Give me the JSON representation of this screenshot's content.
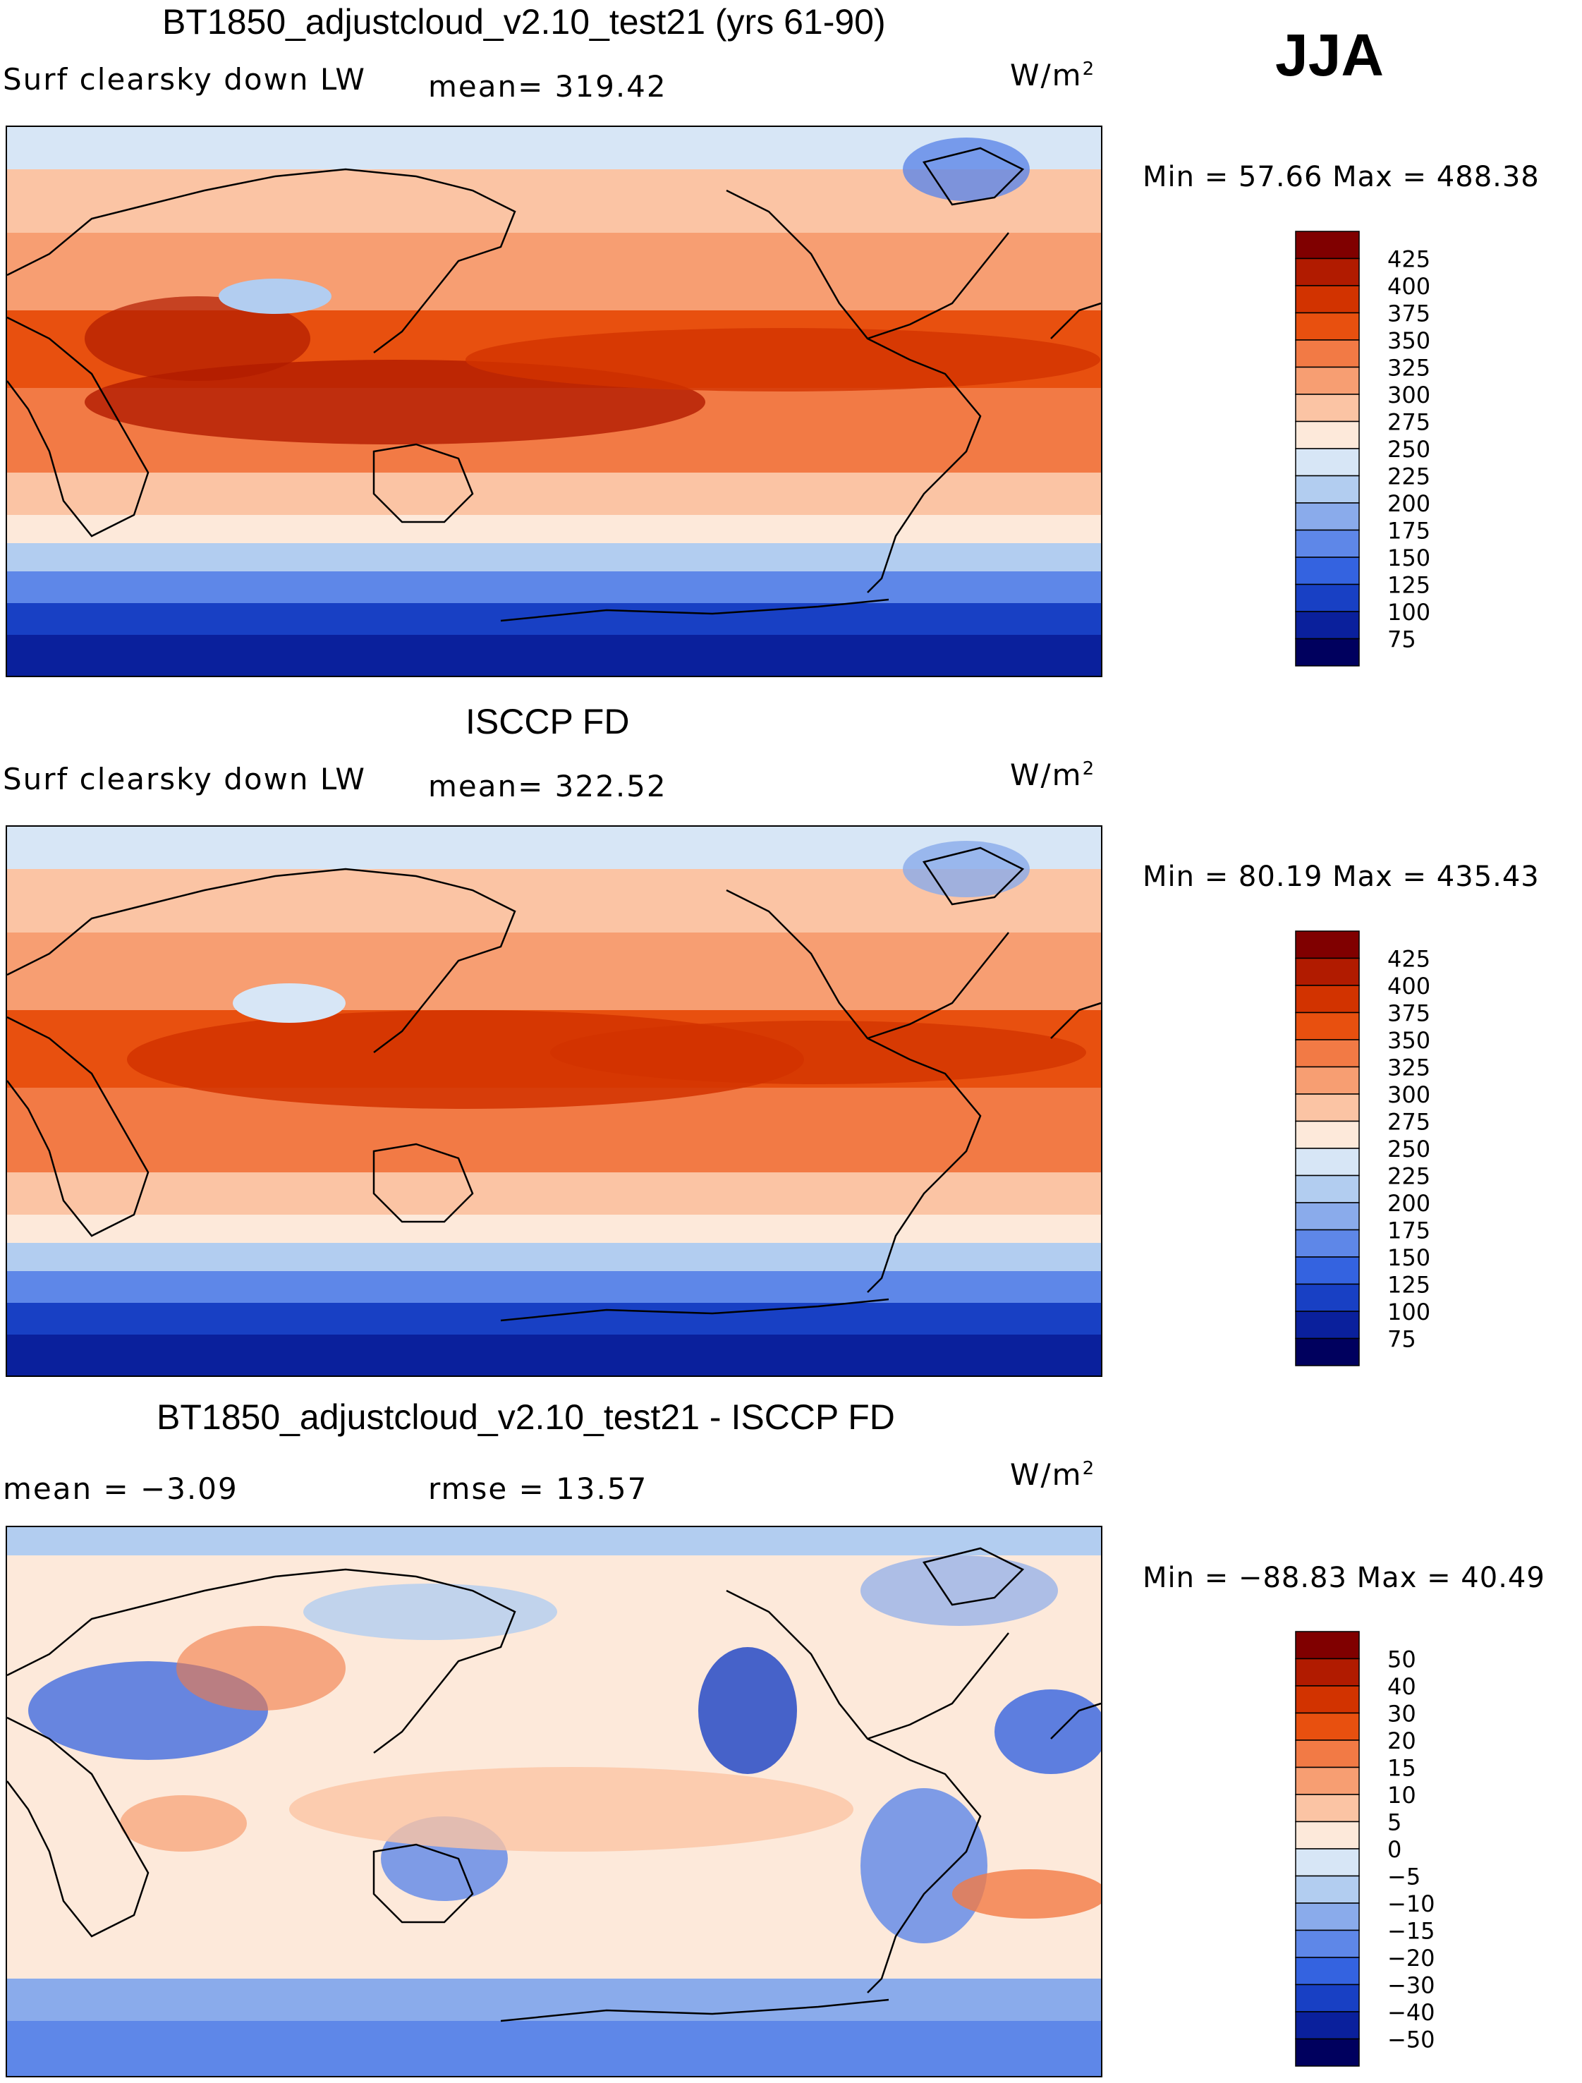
{
  "season": "JJA",
  "chart_data": [
    {
      "type": "heatmap",
      "title": "BT1850_adjustcloud_v2.10_test21 (yrs 61-90)",
      "variable": "Surf clearsky down LW",
      "mean_label": "mean= 319.42",
      "units_base": "W/m",
      "units_exp": "2",
      "min_max_label": "Min =  57.66 Max = 488.38",
      "min": 57.66,
      "max": 488.38,
      "mean": 319.42,
      "levels": [
        "425",
        "400",
        "375",
        "350",
        "325",
        "300",
        "275",
        "250",
        "225",
        "200",
        "175",
        "150",
        "125",
        "100",
        "75"
      ],
      "colors": [
        "#800000",
        "#b11b00",
        "#d23300",
        "#e8500f",
        "#f27a45",
        "#f79e72",
        "#fbc4a4",
        "#fde9da",
        "#d7e6f6",
        "#b2cdf0",
        "#8aabeb",
        "#5e87e8",
        "#3463e0",
        "#1840c4",
        "#0a209c",
        "#00005e"
      ]
    },
    {
      "type": "heatmap",
      "title": "ISCCP FD",
      "variable": "Surf clearsky down LW",
      "mean_label": "mean= 322.52",
      "units_base": "W/m",
      "units_exp": "2",
      "min_max_label": "Min =  80.19 Max = 435.43",
      "min": 80.19,
      "max": 435.43,
      "mean": 322.52,
      "levels": [
        "425",
        "400",
        "375",
        "350",
        "325",
        "300",
        "275",
        "250",
        "225",
        "200",
        "175",
        "150",
        "125",
        "100",
        "75"
      ],
      "colors": [
        "#800000",
        "#b11b00",
        "#d23300",
        "#e8500f",
        "#f27a45",
        "#f79e72",
        "#fbc4a4",
        "#fde9da",
        "#d7e6f6",
        "#b2cdf0",
        "#8aabeb",
        "#5e87e8",
        "#3463e0",
        "#1840c4",
        "#0a209c",
        "#00005e"
      ]
    },
    {
      "type": "heatmap",
      "title": "BT1850_adjustcloud_v2.10_test21 - ISCCP FD",
      "mean_label": "mean =  −3.09",
      "rmse_label": "rmse =  13.57",
      "units_base": "W/m",
      "units_exp": "2",
      "min_max_label": "Min = −88.83 Max =  40.49",
      "min": -88.83,
      "max": 40.49,
      "mean": -3.09,
      "rmse": 13.57,
      "levels": [
        "50",
        "40",
        "30",
        "20",
        "15",
        "10",
        "5",
        "0",
        "−5",
        "−10",
        "−15",
        "−20",
        "−30",
        "−40",
        "−50"
      ],
      "colors": [
        "#800000",
        "#b11b00",
        "#d23300",
        "#e8500f",
        "#f27a45",
        "#f79e72",
        "#fbc4a4",
        "#fde9da",
        "#d7e6f6",
        "#b2cdf0",
        "#8aabeb",
        "#5e87e8",
        "#3463e0",
        "#1840c4",
        "#0a209c",
        "#00005e"
      ]
    }
  ]
}
